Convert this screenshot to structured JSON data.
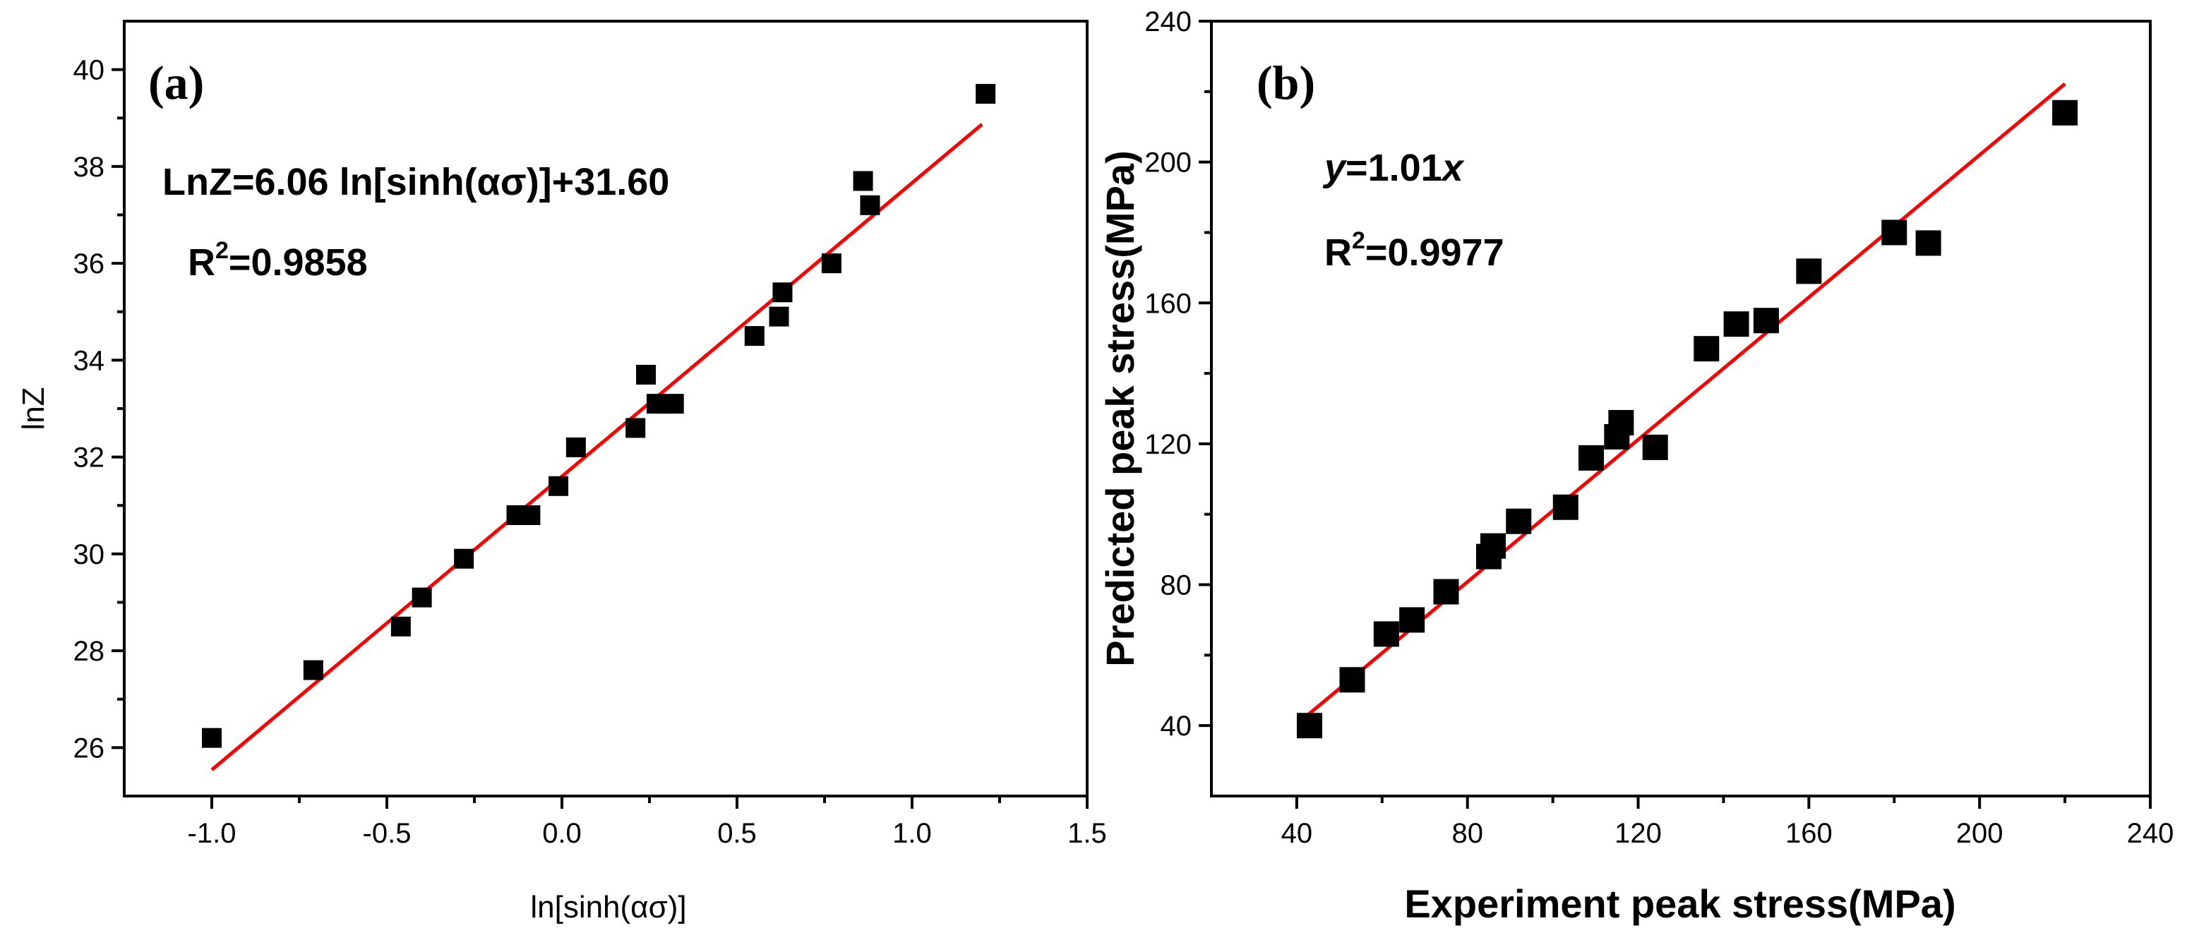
{
  "chart_data": [
    {
      "type": "scatter",
      "panel_label": "(a)",
      "xlabel": "ln[sinh(ασ)]",
      "ylabel": "lnZ",
      "xlim": [
        -1.25,
        1.5
      ],
      "ylim": [
        25,
        41
      ],
      "xticks": [
        -1.0,
        -0.5,
        0.0,
        0.5,
        1.0,
        1.5
      ],
      "xtick_labels": [
        "-1.0",
        "-0.5",
        "0.0",
        "0.5",
        "1.0",
        "1.5"
      ],
      "yticks": [
        26,
        28,
        30,
        32,
        34,
        36,
        38,
        40
      ],
      "ytick_labels": [
        "26",
        "28",
        "30",
        "32",
        "34",
        "36",
        "38",
        "40"
      ],
      "equation_text": "LnZ=6.06 ln[sinh(ασ)]+31.60",
      "r2_prefix": "R",
      "r2_exponent": "2",
      "r2_value": "=0.9858",
      "fit": {
        "slope": 6.06,
        "intercept": 31.6,
        "x_range": [
          -1.0,
          1.2
        ]
      },
      "points": [
        [
          -1.0,
          26.2
        ],
        [
          -0.71,
          27.6
        ],
        [
          -0.46,
          28.5
        ],
        [
          -0.4,
          29.1
        ],
        [
          -0.28,
          29.9
        ],
        [
          -0.13,
          30.8
        ],
        [
          -0.09,
          30.8
        ],
        [
          -0.01,
          31.4
        ],
        [
          0.04,
          32.2
        ],
        [
          0.21,
          32.6
        ],
        [
          0.24,
          33.7
        ],
        [
          0.27,
          33.1
        ],
        [
          0.32,
          33.1
        ],
        [
          0.55,
          34.5
        ],
        [
          0.62,
          34.9
        ],
        [
          0.63,
          35.4
        ],
        [
          0.77,
          36.0
        ],
        [
          0.86,
          37.7
        ],
        [
          0.88,
          37.2
        ],
        [
          1.21,
          39.5
        ]
      ]
    },
    {
      "type": "scatter",
      "panel_label": "(b)",
      "xlabel": "Experiment peak stress(MPa)",
      "ylabel": "Predicted peak stress(MPa)",
      "xlim": [
        20,
        240
      ],
      "ylim": [
        20,
        240
      ],
      "xticks": [
        40,
        80,
        120,
        160,
        200,
        240
      ],
      "xtick_labels": [
        "40",
        "80",
        "120",
        "160",
        "200",
        "240"
      ],
      "yticks": [
        40,
        80,
        120,
        160,
        200,
        240
      ],
      "ytick_labels": [
        "40",
        "80",
        "120",
        "160",
        "200",
        "240"
      ],
      "equation_y": "y",
      "equation_mid": "=1.01",
      "equation_x": "x",
      "r2_prefix": "R",
      "r2_exponent": "2",
      "r2_value": "=0.9977",
      "fit": {
        "slope": 1.01,
        "intercept": 0,
        "x_range": [
          42,
          220
        ]
      },
      "points": [
        [
          43,
          40
        ],
        [
          53,
          53
        ],
        [
          61,
          66
        ],
        [
          67,
          70
        ],
        [
          75,
          78
        ],
        [
          85,
          88
        ],
        [
          86,
          91
        ],
        [
          92,
          98
        ],
        [
          103,
          102
        ],
        [
          109,
          116
        ],
        [
          115,
          122
        ],
        [
          116,
          126
        ],
        [
          124,
          119
        ],
        [
          136,
          147
        ],
        [
          143,
          154
        ],
        [
          150,
          155
        ],
        [
          160,
          169
        ],
        [
          180,
          180
        ],
        [
          188,
          177
        ],
        [
          220,
          214
        ]
      ]
    }
  ]
}
